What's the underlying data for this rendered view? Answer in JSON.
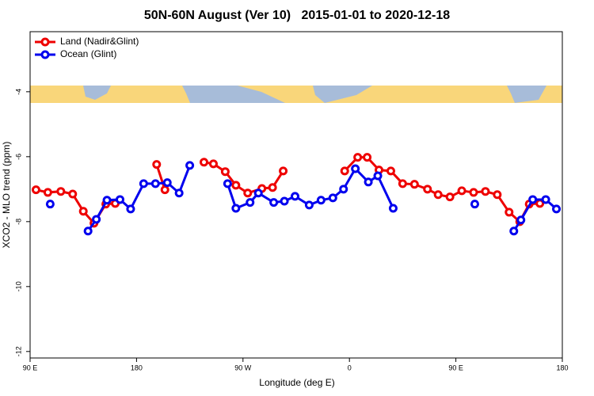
{
  "chart_data": {
    "type": "line",
    "title": "50N-60N August (Ver 10)   2015-01-01 to 2020-12-18",
    "x_label": "Longitude (deg E)",
    "y_label": "XCO2 - MLO trend (ppm)",
    "xlim": [
      90,
      540
    ],
    "xticks": [
      {
        "value": 90,
        "label": "90 E"
      },
      180,
      {
        "value": 270,
        "label": "90 W"
      },
      {
        "value": 360,
        "label": "0"
      },
      {
        "value": 450,
        "label": "90 E"
      },
      {
        "value": 540,
        "label": "180"
      }
    ],
    "ylim": [
      -12.2,
      -2.15
    ],
    "yticks": [
      -4,
      -6,
      -8,
      -10,
      -12
    ],
    "grid": false,
    "legend": "top-left",
    "series": [
      {
        "name": "Land (Nadir&Glint)",
        "color": "#ee0000",
        "x": [
          95,
          105,
          116,
          126,
          135,
          144,
          154,
          162,
          null,
          197,
          204,
          null,
          237,
          245,
          255,
          264,
          274,
          286,
          295,
          304,
          null,
          356,
          367,
          375,
          385,
          395,
          405,
          415,
          426,
          435,
          445,
          455,
          465,
          475,
          485,
          495,
          504,
          512,
          521
        ],
        "values": [
          -7.02,
          -7.1,
          -7.07,
          -7.15,
          -7.68,
          -8.05,
          -7.46,
          -7.44,
          null,
          -6.24,
          -7.02,
          null,
          -6.17,
          -6.22,
          -6.46,
          -6.88,
          -7.12,
          -6.98,
          -6.95,
          -6.44,
          null,
          -6.44,
          -6.02,
          -6.02,
          -6.41,
          -6.44,
          -6.83,
          -6.85,
          -7.0,
          -7.17,
          -7.24,
          -7.05,
          -7.1,
          -7.07,
          -7.17,
          -7.71,
          -8.0,
          -7.46,
          -7.44
        ]
      },
      {
        "name": "Ocean (Glint)",
        "color": "#0000ee",
        "x": [
          107,
          null,
          139,
          146,
          155,
          166,
          175,
          186,
          196,
          206,
          216,
          225,
          null,
          257,
          264,
          276,
          283,
          296,
          305,
          314,
          326,
          336,
          346,
          355,
          365,
          376,
          384,
          397,
          null,
          466,
          null,
          499,
          505,
          515,
          526,
          535
        ],
        "values": [
          -7.46,
          null,
          -8.29,
          -7.93,
          -7.34,
          -7.32,
          -7.61,
          -6.83,
          -6.83,
          -6.8,
          -7.12,
          -6.27,
          null,
          -6.83,
          -7.59,
          -7.41,
          -7.12,
          -7.41,
          -7.37,
          -7.22,
          -7.49,
          -7.34,
          -7.27,
          -7.0,
          -6.37,
          -6.78,
          -6.59,
          -7.59,
          null,
          -7.46,
          null,
          -8.29,
          -7.95,
          -7.32,
          -7.32,
          -7.61
        ]
      }
    ]
  }
}
